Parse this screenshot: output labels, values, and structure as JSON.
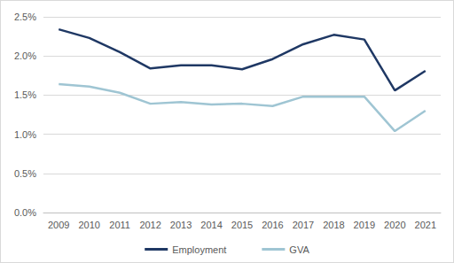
{
  "chart_data": {
    "type": "line",
    "categories": [
      "2009",
      "2010",
      "2011",
      "2012",
      "2013",
      "2014",
      "2015",
      "2016",
      "2017",
      "2018",
      "2019",
      "2020",
      "2021"
    ],
    "series": [
      {
        "name": "Employment",
        "color": "#1f3864",
        "values": [
          2.34,
          2.23,
          2.05,
          1.84,
          1.88,
          1.88,
          1.83,
          1.96,
          2.15,
          2.27,
          2.21,
          1.56,
          1.81
        ]
      },
      {
        "name": "GVA",
        "color": "#9fc5d3",
        "values": [
          1.64,
          1.61,
          1.53,
          1.39,
          1.41,
          1.38,
          1.39,
          1.36,
          1.48,
          1.48,
          1.48,
          1.04,
          1.3
        ]
      }
    ],
    "ylim": [
      0,
      2.5
    ],
    "yticks": [
      {
        "value": 0,
        "label": "0.0%"
      },
      {
        "value": 0.5,
        "label": "0.5%"
      },
      {
        "value": 1,
        "label": "1.0%"
      },
      {
        "value": 1.5,
        "label": "1.5%"
      },
      {
        "value": 2,
        "label": "2.0%"
      },
      {
        "value": 2.5,
        "label": "2.5%"
      }
    ],
    "grid": true,
    "legend": "bottom"
  }
}
